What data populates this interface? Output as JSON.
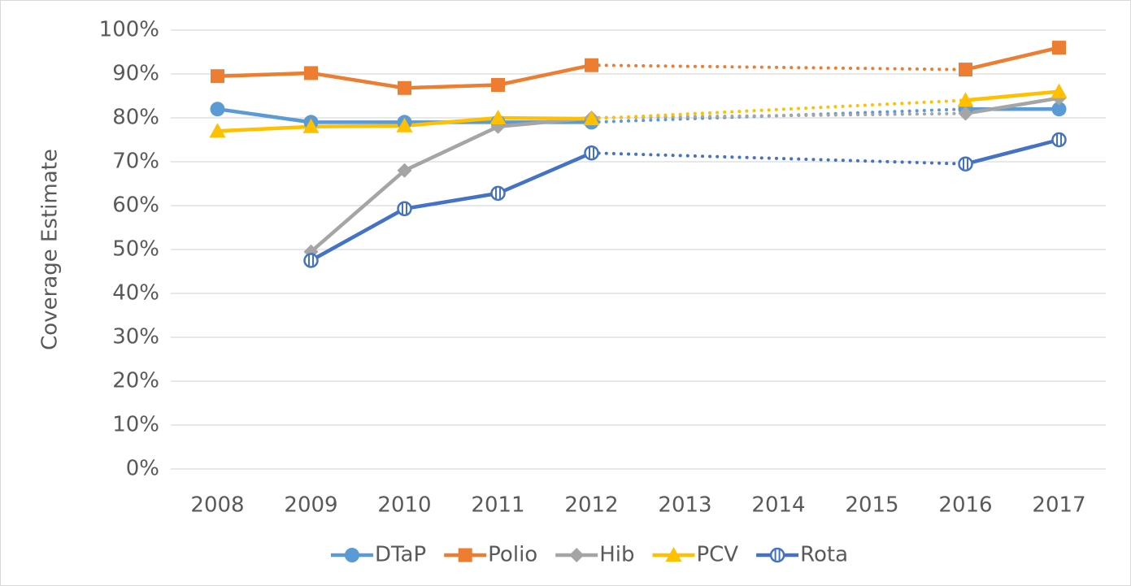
{
  "chart_data": {
    "type": "line",
    "y_label": "Coverage Estimate",
    "categories": [
      "2008",
      "2009",
      "2010",
      "2011",
      "2012",
      "2013",
      "2014",
      "2015",
      "2016",
      "2017"
    ],
    "series": [
      {
        "name": "DTaP",
        "color": "#5b9bd5",
        "marker": "circle",
        "values": [
          82,
          79,
          79,
          79,
          79,
          null,
          null,
          null,
          82,
          82
        ]
      },
      {
        "name": "Polio",
        "color": "#ed7d31",
        "marker": "square",
        "values": [
          89.5,
          90.2,
          86.8,
          87.5,
          92,
          null,
          null,
          null,
          91,
          96
        ]
      },
      {
        "name": "Hib",
        "color": "#a5a5a5",
        "marker": "diamond",
        "values": [
          null,
          49.5,
          68,
          78,
          80,
          null,
          null,
          null,
          81,
          84.5
        ]
      },
      {
        "name": "PCV",
        "color": "#ffc000",
        "marker": "triangle",
        "values": [
          77,
          78,
          78.2,
          80,
          79.8,
          null,
          null,
          null,
          84,
          86
        ]
      },
      {
        "name": "Rota",
        "color": "#4472c4",
        "marker": "striped-circle",
        "values": [
          null,
          47.5,
          59.3,
          62.8,
          72,
          null,
          null,
          null,
          69.5,
          75
        ]
      }
    ],
    "ylim": [
      0,
      100
    ],
    "yticks": [
      {
        "value": 0,
        "label": "0%"
      },
      {
        "value": 10,
        "label": "10%"
      },
      {
        "value": 20,
        "label": "20%"
      },
      {
        "value": 30,
        "label": "30%"
      },
      {
        "value": 40,
        "label": "40%"
      },
      {
        "value": 50,
        "label": "50%"
      },
      {
        "value": 60,
        "label": "60%"
      },
      {
        "value": 70,
        "label": "70%"
      },
      {
        "value": 80,
        "label": "80%"
      },
      {
        "value": 90,
        "label": "90%"
      },
      {
        "value": 100,
        "label": "100%"
      }
    ],
    "grid": true,
    "legend": "bottom"
  }
}
